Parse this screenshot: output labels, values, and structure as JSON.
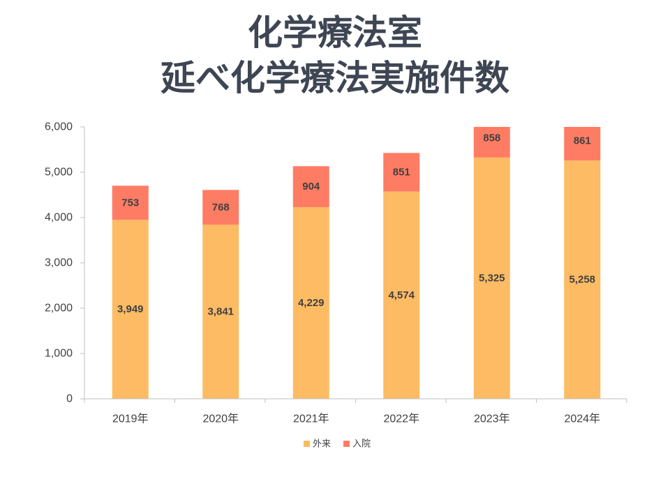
{
  "chart_data": {
    "type": "bar",
    "stacked": true,
    "title": [
      "化学療法室",
      "延べ化学療法実施件数"
    ],
    "xlabel": "",
    "ylabel": "",
    "categories": [
      "2019年",
      "2020年",
      "2021年",
      "2022年",
      "2023年",
      "2024年"
    ],
    "series": [
      {
        "name": "外来",
        "color": "#FDBB64",
        "values": [
          3949,
          3841,
          4229,
          4574,
          5325,
          5258
        ],
        "labels": [
          "3,949",
          "3,841",
          "4,229",
          "4,574",
          "5,325",
          "5,258"
        ]
      },
      {
        "name": "入院",
        "color": "#FF7C64",
        "values": [
          753,
          768,
          904,
          851,
          858,
          861
        ],
        "labels": [
          "753",
          "768",
          "904",
          "851",
          "858",
          "861"
        ]
      }
    ],
    "ylim": [
      0,
      6000
    ],
    "yticks": [
      0,
      1000,
      2000,
      3000,
      4000,
      5000,
      6000
    ],
    "ytick_labels": [
      "0",
      "1,000",
      "2,000",
      "3,000",
      "4,000",
      "5,000",
      "6,000"
    ],
    "grid": false,
    "legend": "bottom-center"
  }
}
